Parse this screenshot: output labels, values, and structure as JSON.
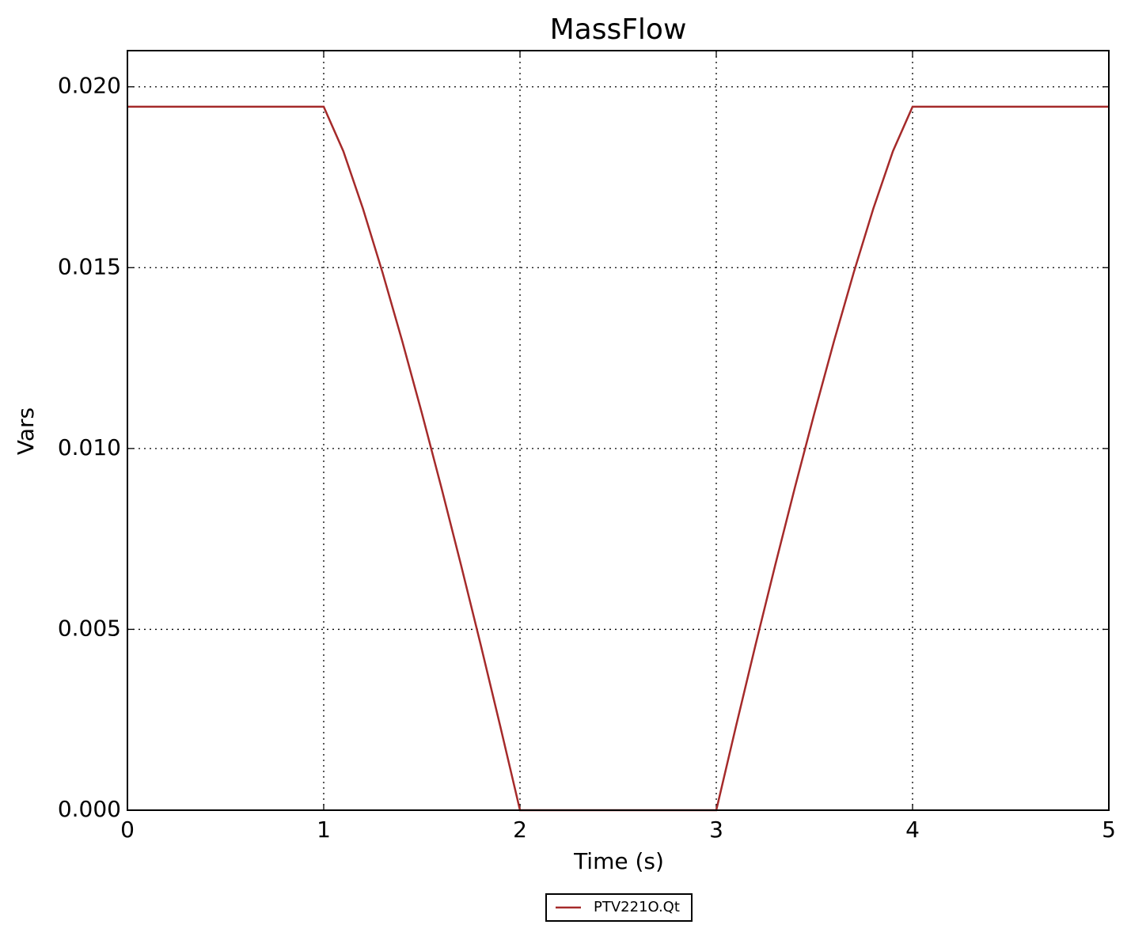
{
  "chart_data": {
    "type": "line",
    "title": "MassFlow",
    "xlabel": "Time (s)",
    "ylabel": "Vars",
    "x": [
      0,
      1,
      1.1,
      1.2,
      1.3,
      1.4,
      1.5,
      1.6,
      1.7,
      1.8,
      1.9,
      2,
      3,
      3.1,
      3.2,
      3.3,
      3.4,
      3.5,
      3.6,
      3.7,
      3.8,
      3.9,
      4,
      5
    ],
    "series": [
      {
        "name": "PTV221O.Qt",
        "color": "#a52a2a",
        "values": [
          0.01945,
          0.01945,
          0.01822,
          0.01663,
          0.01486,
          0.01297,
          0.01098,
          0.00891,
          0.00677,
          0.00457,
          0.00231,
          0,
          0,
          0.00231,
          0.00457,
          0.00677,
          0.00891,
          0.01098,
          0.01297,
          0.01486,
          0.01663,
          0.01822,
          0.01945,
          0.01945
        ]
      }
    ],
    "xlim": [
      0,
      5
    ],
    "xticks": [
      0,
      1,
      2,
      3,
      4,
      5
    ],
    "ylim": [
      0,
      0.021
    ],
    "yticks": [
      {
        "value": 0,
        "label": "0.000"
      },
      {
        "value": 0.005,
        "label": "0.005"
      },
      {
        "value": 0.01,
        "label": "0.010"
      },
      {
        "value": 0.015,
        "label": "0.015"
      },
      {
        "value": 0.02,
        "label": "0.020"
      }
    ],
    "grid": true,
    "legend": "bottom"
  }
}
